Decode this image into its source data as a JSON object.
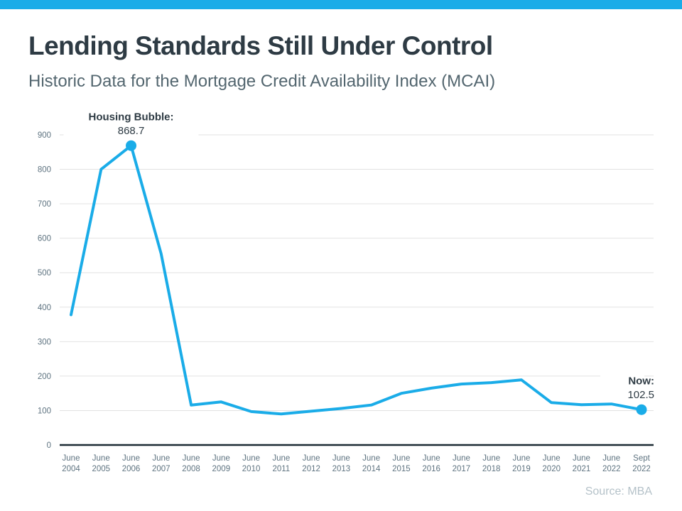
{
  "header": {
    "title": "Lending Standards Still Under Control",
    "subtitle": "Historic Data for the Mortgage Credit Availability Index (MCAI)"
  },
  "source_note": "Source: MBA",
  "colors": {
    "accent_bar": "#1AACE8",
    "line": "#1AACE8",
    "title_text": "#2E3B44",
    "subtitle_text": "#53666F",
    "axis_text": "#5E7380",
    "gridline": "#E2E2E2",
    "axis_line": "#1B2A33",
    "annotation_text": "#2E3B44",
    "source_text": "#B5C2C9"
  },
  "chart_data": {
    "type": "line",
    "title": "Historic Data for the Mortgage Credit Availability Index (MCAI)",
    "categories": [
      "June 2004",
      "June 2005",
      "June 2006",
      "June 2007",
      "June 2008",
      "June 2009",
      "June 2010",
      "June 2011",
      "June 2012",
      "June 2013",
      "June 2014",
      "June 2015",
      "June 2016",
      "June 2017",
      "June 2018",
      "June 2019",
      "June 2020",
      "June 2021",
      "June 2022",
      "Sept 2022"
    ],
    "values": [
      378,
      800,
      868.7,
      555,
      116,
      125,
      97,
      90,
      98,
      106,
      116,
      150,
      165,
      177,
      181,
      189,
      123,
      117,
      119,
      102.5
    ],
    "ylim": [
      0,
      900
    ],
    "ytick_step": 100,
    "grid": true,
    "legend": "none",
    "line_color": "#1AACE8",
    "annotations": [
      {
        "label": "Housing Bubble:",
        "value": "868.7",
        "index": 2
      },
      {
        "label": "Now:",
        "value": "102.5",
        "index": 19
      }
    ]
  }
}
